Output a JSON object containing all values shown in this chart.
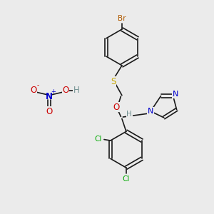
{
  "bg_color": "#ebebeb",
  "bond_color": "#1a1a1a",
  "br_color": "#b05a00",
  "s_color": "#c8a800",
  "o_color": "#cc0000",
  "n_color": "#0000cc",
  "cl_color": "#00aa00",
  "h_color": "#709090",
  "figsize": [
    3.0,
    3.0
  ],
  "dpi": 100,
  "xlim": [
    0,
    10
  ],
  "ylim": [
    0,
    10
  ]
}
